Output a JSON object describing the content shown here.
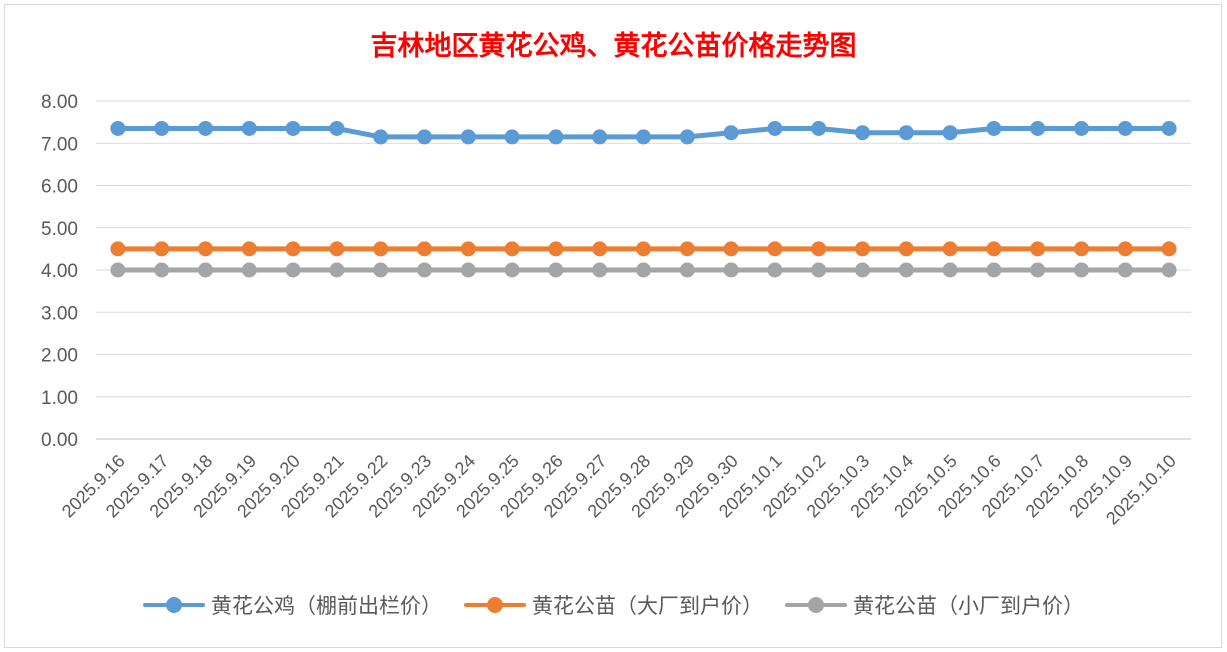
{
  "chart_data": {
    "type": "line",
    "title": "吉林地区黄花公鸡、黄花公苗价格走势图",
    "x": [
      "2025.9.16",
      "2025.9.17",
      "2025.9.18",
      "2025.9.19",
      "2025.9.20",
      "2025.9.21",
      "2025.9.22",
      "2025.9.23",
      "2025.9.24",
      "2025.9.25",
      "2025.9.26",
      "2025.9.27",
      "2025.9.28",
      "2025.9.29",
      "2025.9.30",
      "2025.10.1",
      "2025.10.2",
      "2025.10.3",
      "2025.10.4",
      "2025.10.5",
      "2025.10.6",
      "2025.10.7",
      "2025.10.8",
      "2025.10.9",
      "2025.10.10"
    ],
    "yticks": [
      "0.00",
      "1.00",
      "2.00",
      "3.00",
      "4.00",
      "5.00",
      "6.00",
      "7.00",
      "8.00"
    ],
    "ylim": [
      0,
      8
    ],
    "grid": true,
    "legend_position": "bottom",
    "series": [
      {
        "name": "黄花公鸡（棚前出栏价）",
        "color": "#5b9bd5",
        "values": [
          7.35,
          7.35,
          7.35,
          7.35,
          7.35,
          7.35,
          7.15,
          7.15,
          7.15,
          7.15,
          7.15,
          7.15,
          7.15,
          7.15,
          7.25,
          7.35,
          7.35,
          7.25,
          7.25,
          7.25,
          7.35,
          7.35,
          7.35,
          7.35,
          7.35
        ]
      },
      {
        "name": "黄花公苗（大厂到户价）",
        "color": "#ed7d31",
        "values": [
          4.5,
          4.5,
          4.5,
          4.5,
          4.5,
          4.5,
          4.5,
          4.5,
          4.5,
          4.5,
          4.5,
          4.5,
          4.5,
          4.5,
          4.5,
          4.5,
          4.5,
          4.5,
          4.5,
          4.5,
          4.5,
          4.5,
          4.5,
          4.5,
          4.5
        ]
      },
      {
        "name": "黄花公苗（小厂到户价）",
        "color": "#a5a5a5",
        "values": [
          4.0,
          4.0,
          4.0,
          4.0,
          4.0,
          4.0,
          4.0,
          4.0,
          4.0,
          4.0,
          4.0,
          4.0,
          4.0,
          4.0,
          4.0,
          4.0,
          4.0,
          4.0,
          4.0,
          4.0,
          4.0,
          4.0,
          4.0,
          4.0,
          4.0
        ]
      }
    ]
  }
}
